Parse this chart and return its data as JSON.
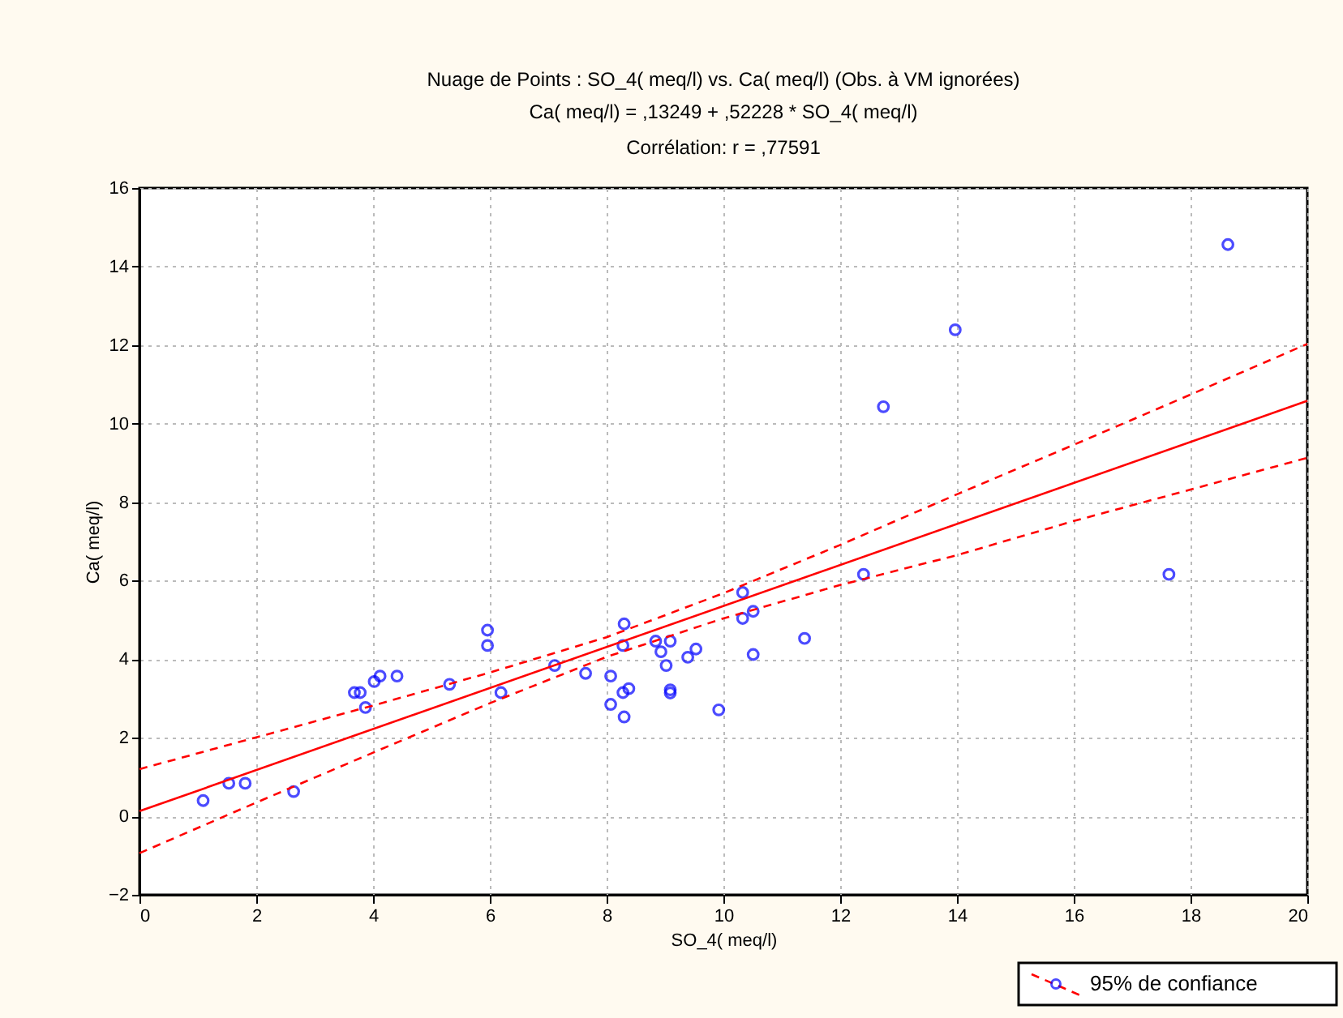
{
  "chart_data": {
    "type": "scatter",
    "title": "Nuage de Points : SO_4( meq/l) vs. Ca( meq/l) (Obs. à VM ignorées)",
    "subtitle": "Ca( meq/l) = ,13249 + ,52228 * SO_4( meq/l)",
    "annotations": [
      "Corrélation: r = ,77591"
    ],
    "xlabel": "SO_4( meq/l)",
    "ylabel": "Ca( meq/l)",
    "xlim": [
      0,
      20
    ],
    "ylim": [
      -2,
      16
    ],
    "xticks": [
      0,
      2,
      4,
      6,
      8,
      10,
      12,
      14,
      16,
      18,
      20
    ],
    "yticks": [
      -2,
      0,
      2,
      4,
      6,
      8,
      10,
      12,
      14,
      16
    ],
    "grid": true,
    "legend": "bottom right",
    "series": [
      {
        "type": "scatter",
        "color": "#0000ff",
        "marker": "circle",
        "x": [
          1.09,
          1.53,
          1.81,
          2.64,
          3.68,
          3.78,
          3.87,
          4.02,
          4.12,
          4.41,
          5.31,
          5.96,
          5.96,
          6.19,
          7.11,
          7.64,
          8.07,
          8.3,
          8.28,
          8.07,
          8.28,
          8.38,
          8.3,
          8.84,
          9.09,
          8.93,
          9.02,
          9.09,
          9.09,
          9.39,
          9.53,
          9.92,
          10.33,
          10.33,
          10.51,
          10.51,
          11.39,
          12.4,
          12.74,
          13.97,
          17.63,
          18.64
        ],
        "values": [
          0.4,
          0.84,
          0.84,
          0.63,
          3.15,
          3.15,
          2.77,
          3.43,
          3.57,
          3.57,
          3.36,
          4.74,
          4.35,
          3.15,
          3.84,
          3.64,
          3.57,
          4.9,
          4.35,
          2.85,
          3.15,
          3.25,
          2.53,
          4.46,
          4.46,
          4.19,
          3.84,
          3.22,
          3.14,
          4.05,
          4.26,
          2.71,
          5.7,
          5.04,
          5.22,
          4.12,
          4.53,
          6.16,
          10.43,
          12.39,
          6.16,
          14.56
        ]
      },
      {
        "type": "line",
        "color": "#ff0000",
        "line_style": "solid",
        "marker": "none",
        "x": [
          0,
          20
        ],
        "values": [
          0.13,
          10.58
        ]
      },
      {
        "type": "line",
        "name": "95% de confiance",
        "color": "#ff0000",
        "line_style": "dashed",
        "marker": "none",
        "x": [
          0,
          2,
          4,
          6,
          8,
          10,
          12,
          14,
          16,
          18,
          20
        ],
        "values": [
          1.2,
          2.01,
          2.82,
          3.66,
          4.56,
          5.68,
          6.91,
          8.2,
          9.46,
          10.74,
          12.03
        ]
      },
      {
        "type": "line",
        "color": "#ff0000",
        "line_style": "dashed",
        "marker": "none",
        "x": [
          0,
          2,
          4,
          6,
          8,
          10,
          12,
          14,
          16,
          18,
          20
        ],
        "values": [
          -0.94,
          0.35,
          1.62,
          2.88,
          4.06,
          5.04,
          5.89,
          6.65,
          7.52,
          8.32,
          9.13
        ]
      }
    ]
  }
}
